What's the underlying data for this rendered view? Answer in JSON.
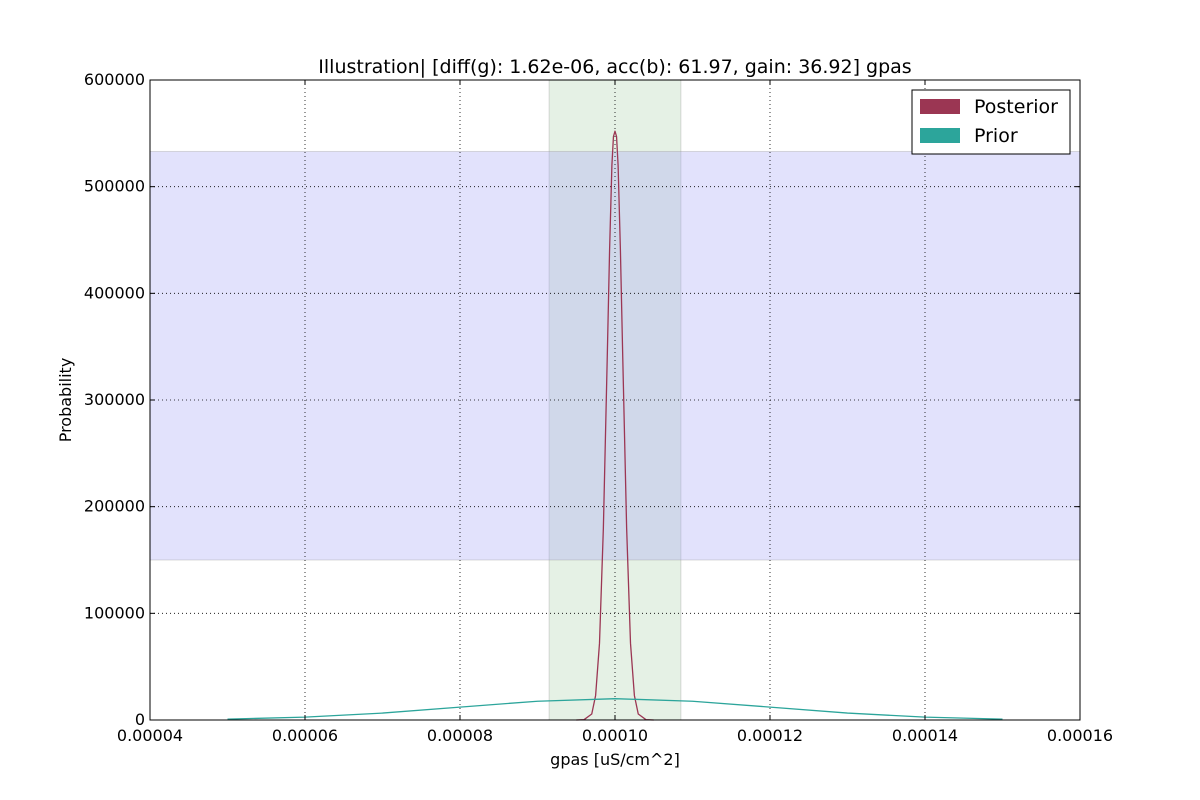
{
  "chart_data": {
    "type": "line",
    "title": "Illustration|  [diff(g): 1.62e-06, acc(b): 61.97, gain: 36.92] gpas",
    "xlabel": "gpas [uS/cm^2]",
    "ylabel": "Probability",
    "xlim": [
      4e-05,
      0.00016
    ],
    "ylim": [
      0,
      600000
    ],
    "xticks": [
      "0.00004",
      "0.00006",
      "0.00008",
      "0.00010",
      "0.00012",
      "0.00014",
      "0.00016"
    ],
    "yticks": [
      "0",
      "100000",
      "200000",
      "300000",
      "400000",
      "500000",
      "600000"
    ],
    "grid": true,
    "legend_position": "top-right",
    "series": [
      {
        "name": "Posterior",
        "color": "#9b3653",
        "x": [
          9.5e-05,
          9.6e-05,
          9.7e-05,
          9.75e-05,
          9.8e-05,
          9.85e-05,
          9.9e-05,
          9.93e-05,
          9.96e-05,
          9.98e-05,
          0.0001,
          0.0001002,
          0.0001004,
          0.0001007,
          0.000101,
          0.0001015,
          0.000102,
          0.0001025,
          0.000103,
          0.000104,
          0.000105
        ],
        "y": [
          0,
          300,
          5600,
          23000,
          72000,
          180000,
          340000,
          440000,
          520000,
          547000,
          552000,
          547000,
          520000,
          440000,
          340000,
          180000,
          72000,
          23000,
          5600,
          300,
          0
        ]
      },
      {
        "name": "Prior",
        "color": "#2ca59b",
        "x": [
          5e-05,
          6e-05,
          7e-05,
          8e-05,
          9e-05,
          0.0001,
          0.00011,
          0.00012,
          0.00013,
          0.00014,
          0.00015
        ],
        "y": [
          850,
          2700,
          6500,
          12100,
          17600,
          20000,
          17600,
          12100,
          6500,
          2700,
          850
        ]
      }
    ],
    "bands": [
      {
        "orientation": "vertical",
        "from": 9.15e-05,
        "to": 0.0001085,
        "color": "#aed3ae"
      },
      {
        "orientation": "horizontal",
        "from": 150000,
        "to": 533000,
        "color": "#a6a6f6"
      }
    ]
  }
}
